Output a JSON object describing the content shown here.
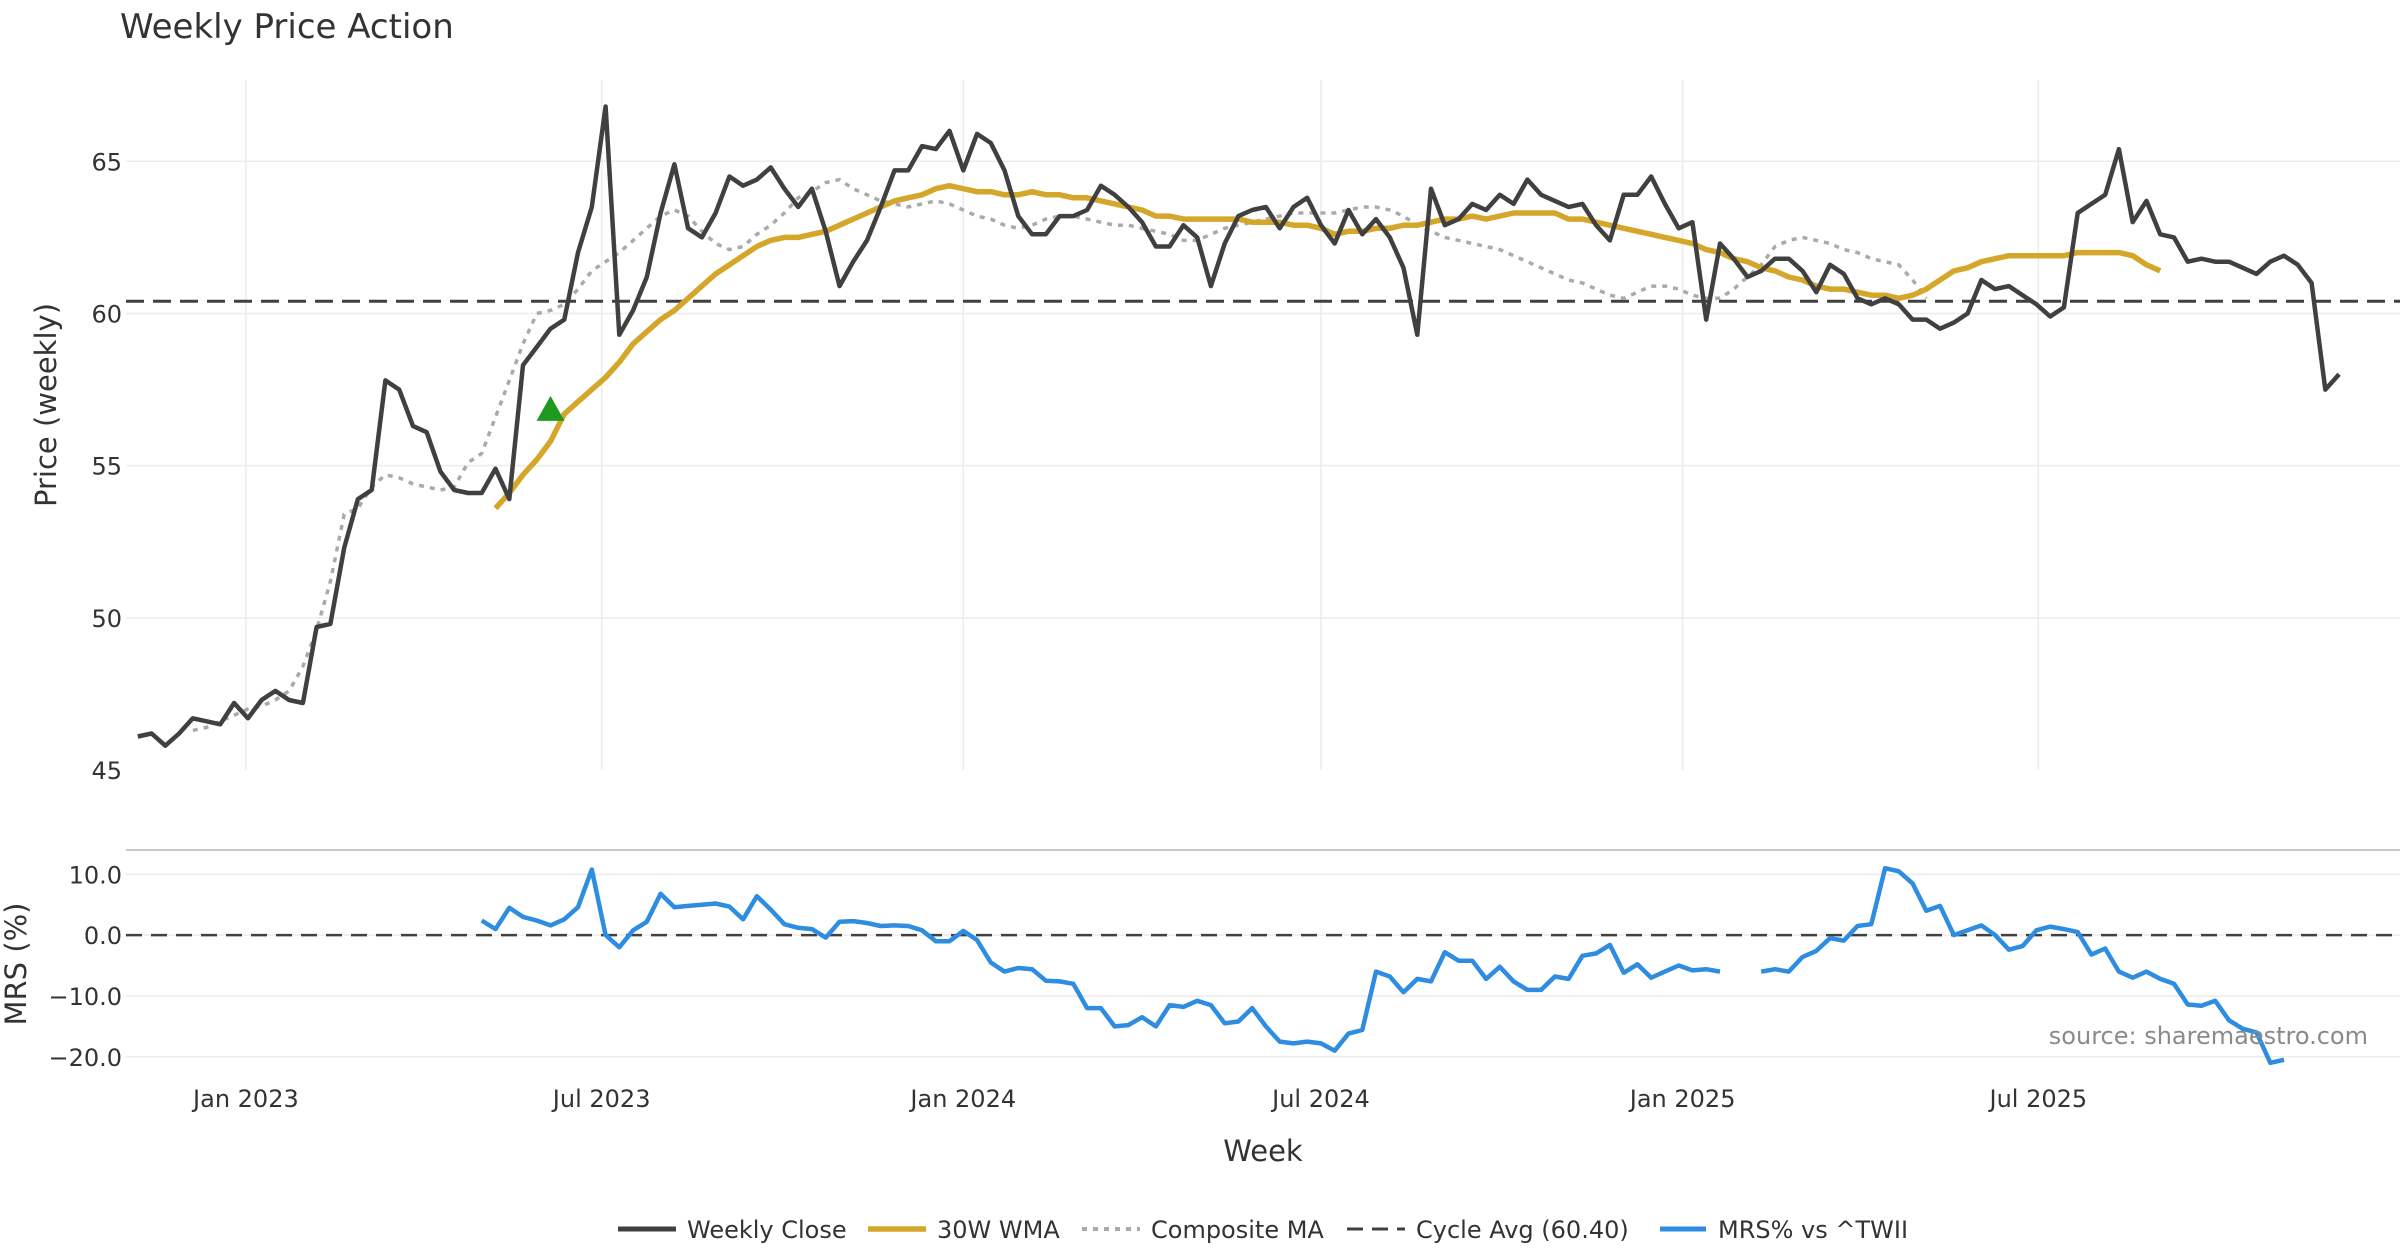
{
  "chart_data": {
    "type": "line",
    "title": "Weekly Price Action",
    "xlabel": "Week",
    "x_ticks": [
      "Jan 2023",
      "Jul 2023",
      "Jan 2024",
      "Jul 2024",
      "Jan 2025",
      "Jul 2025"
    ],
    "source": "source: sharemaestro.com",
    "legend_position": "bottom-center",
    "legend": [
      "Weekly Close",
      "30W WMA",
      "Composite MA",
      "Cycle Avg (60.40)",
      "MRS% vs ^TWII"
    ],
    "colors": {
      "close": "#404040",
      "wma": "#d4a62a",
      "composite": "#aaaaaa",
      "cycle": "#404040",
      "mrs": "#2e8de0",
      "signal": "#1e9a1e"
    },
    "price_panel": {
      "ylabel": "Price (weekly)",
      "ylim": [
        45,
        68
      ],
      "y_ticks": [
        "45",
        "50",
        "55",
        "60",
        "65"
      ],
      "grid": true,
      "cycle_avg": 60.4,
      "buy_signal": {
        "date": "2023-06-05",
        "price": 56.8
      },
      "series": [
        {
          "name": "Weekly Close",
          "start": "2022-11-07",
          "values": [
            46.1,
            46.2,
            45.8,
            46.2,
            46.7,
            46.6,
            46.5,
            47.2,
            46.7,
            47.3,
            47.6,
            47.3,
            47.2,
            49.7,
            49.8,
            52.3,
            53.9,
            54.2,
            57.8,
            57.5,
            56.3,
            56.1,
            54.8,
            54.2,
            54.1,
            54.1,
            54.9,
            53.9,
            58.3,
            58.9,
            59.5,
            59.8,
            62.0,
            63.5,
            66.8,
            59.3,
            60.1,
            61.2,
            63.3,
            64.9,
            62.8,
            62.5,
            63.3,
            64.5,
            64.2,
            64.4,
            64.8,
            64.1,
            63.5,
            64.1,
            62.7,
            60.9,
            61.7,
            62.4,
            63.5,
            64.7,
            64.7,
            65.5,
            65.4,
            66.0,
            64.7,
            65.9,
            65.6,
            64.7,
            63.2,
            62.6,
            62.6,
            63.2,
            63.2,
            63.4,
            64.2,
            63.9,
            63.5,
            63.0,
            62.2,
            62.2,
            62.9,
            62.5,
            60.9,
            62.3,
            63.2,
            63.4,
            63.5,
            62.8,
            63.5,
            63.8,
            62.9,
            62.3,
            63.4,
            62.6,
            63.1,
            62.5,
            61.5,
            59.3,
            64.1,
            62.9,
            63.1,
            63.6,
            63.4,
            63.9,
            63.6,
            64.4,
            63.9,
            63.7,
            63.5,
            63.6,
            62.9,
            62.4,
            63.9,
            63.9,
            64.5,
            63.6,
            62.8,
            63.0,
            59.8,
            62.3,
            61.8,
            61.2,
            61.4,
            61.8,
            61.8,
            61.4,
            60.7,
            61.6,
            61.3,
            60.5,
            60.3,
            60.5,
            60.3,
            59.8,
            59.8,
            59.5,
            59.7,
            60.0,
            61.1,
            60.8,
            60.9,
            60.6,
            60.3,
            59.9,
            60.2,
            63.3,
            63.6,
            63.9,
            65.4,
            63.0,
            63.7,
            62.6,
            62.5,
            61.7,
            61.8,
            61.7,
            61.7,
            61.5,
            61.3,
            61.7,
            61.9,
            61.6,
            61.0,
            57.5,
            58.0
          ]
        },
        {
          "name": "30W WMA",
          "start": "2023-05-08",
          "values": [
            53.6,
            54.1,
            54.7,
            55.2,
            55.8,
            56.7,
            57.1,
            57.5,
            57.9,
            58.4,
            59.0,
            59.4,
            59.8,
            60.1,
            60.5,
            60.9,
            61.3,
            61.6,
            61.9,
            62.2,
            62.4,
            62.5,
            62.5,
            62.6,
            62.7,
            62.9,
            63.1,
            63.3,
            63.5,
            63.7,
            63.8,
            63.9,
            64.1,
            64.2,
            64.1,
            64.0,
            64.0,
            63.9,
            63.9,
            64.0,
            63.9,
            63.9,
            63.8,
            63.8,
            63.7,
            63.6,
            63.5,
            63.4,
            63.2,
            63.2,
            63.1,
            63.1,
            63.1,
            63.1,
            63.1,
            63.0,
            63.0,
            63.0,
            62.9,
            62.9,
            62.8,
            62.6,
            62.7,
            62.7,
            62.8,
            62.8,
            62.9,
            62.9,
            63.0,
            63.1,
            63.1,
            63.2,
            63.1,
            63.2,
            63.3,
            63.3,
            63.3,
            63.3,
            63.1,
            63.1,
            63.0,
            62.9,
            62.8,
            62.7,
            62.6,
            62.5,
            62.4,
            62.3,
            62.1,
            62.0,
            61.8,
            61.7,
            61.5,
            61.4,
            61.2,
            61.1,
            60.9,
            60.8,
            60.8,
            60.7,
            60.6,
            60.6,
            60.5,
            60.6,
            60.8,
            61.1,
            61.4,
            61.5,
            61.7,
            61.8,
            61.9,
            61.9,
            61.9,
            61.9,
            61.9,
            62.0,
            62.0,
            62.0,
            62.0,
            61.9,
            61.6,
            61.4
          ]
        },
        {
          "name": "Composite MA",
          "start": "2022-12-05",
          "values": [
            46.3,
            46.4,
            46.6,
            46.8,
            47.0,
            47.1,
            47.3,
            47.6,
            48.4,
            49.6,
            51.2,
            53.4,
            53.6,
            54.3,
            54.7,
            54.6,
            54.4,
            54.3,
            54.2,
            54.3,
            55.1,
            55.4,
            56.6,
            57.8,
            59.0,
            60.0,
            60.1,
            60.3,
            60.8,
            61.4,
            61.7,
            62.0,
            62.4,
            62.8,
            63.2,
            63.4,
            63.2,
            62.7,
            62.3,
            62.1,
            62.2,
            62.6,
            62.9,
            63.3,
            63.8,
            64.0,
            64.3,
            64.4,
            64.1,
            63.9,
            63.7,
            63.6,
            63.5,
            63.6,
            63.7,
            63.6,
            63.4,
            63.2,
            63.1,
            62.9,
            62.8,
            62.9,
            63.1,
            63.2,
            63.2,
            63.1,
            63.0,
            62.9,
            62.9,
            62.8,
            62.7,
            62.6,
            62.4,
            62.4,
            62.6,
            62.8,
            62.9,
            63.0,
            63.1,
            63.2,
            63.3,
            63.3,
            63.3,
            63.3,
            63.4,
            63.5,
            63.5,
            63.4,
            63.2,
            62.9,
            62.7,
            62.5,
            62.4,
            62.3,
            62.2,
            62.1,
            61.9,
            61.7,
            61.5,
            61.3,
            61.1,
            61.0,
            60.8,
            60.6,
            60.5,
            60.7,
            60.9,
            60.9,
            60.8,
            60.6,
            60.5,
            60.5,
            60.8,
            61.2,
            61.6,
            62.2,
            62.4,
            62.5,
            62.4,
            62.3,
            62.1,
            62.0,
            61.8,
            61.7,
            61.6,
            61.1,
            60.5
          ]
        }
      ]
    },
    "mrs_panel": {
      "ylabel": "MRS (%)",
      "ylim": [
        -23,
        14
      ],
      "y_ticks": [
        "10.0",
        "0.0",
        "−10.0",
        "−20.0"
      ],
      "zero_line": 0,
      "series": [
        {
          "name": "MRS% vs ^TWII",
          "start": "2023-05-01",
          "segments": [
            [
              2.4,
              1.0,
              4.5,
              3.0,
              2.4,
              1.6,
              2.6,
              4.6,
              10.8,
              0.0,
              -2.0,
              0.8,
              2.2,
              6.8,
              4.6,
              4.8,
              5.0,
              5.2,
              4.7,
              2.6,
              6.4,
              4.2,
              1.8,
              1.2,
              1.0,
              -0.4,
              2.2,
              2.3,
              2.0,
              1.5,
              1.6,
              1.5,
              0.8,
              -1.0,
              -1.0,
              0.7,
              -0.8,
              -4.5,
              -6.0,
              -5.4,
              -5.6,
              -7.5,
              -7.6,
              -8.0,
              -12.0,
              -12.0,
              -15.0,
              -14.8,
              -13.5,
              -15.0,
              -11.5,
              -11.8,
              -10.8,
              -11.5,
              -14.5,
              -14.2,
              -12.0,
              -15.0,
              -17.5,
              -17.8,
              -17.5,
              -17.8,
              -19.0,
              -16.2,
              -15.6,
              -6.0,
              -6.8,
              -9.4,
              -7.2,
              -7.6,
              -2.8,
              -4.2,
              -4.2,
              -7.2,
              -5.2,
              -7.6,
              -9.0,
              -9.0,
              -6.8,
              -7.2,
              -3.4,
              -3.0,
              -1.6,
              -6.2,
              -4.8,
              -7.0,
              -6.0,
              -5.0,
              -5.8,
              -5.6,
              -6.0
            ],
            [
              -6.0,
              -5.6,
              -6.0,
              -3.6,
              -2.6,
              -0.5,
              -0.9,
              1.5,
              1.8,
              11.0,
              10.5,
              8.5,
              4.0,
              4.8,
              0.0,
              0.8,
              1.6,
              0.0,
              -2.4,
              -1.8,
              0.8,
              1.4,
              1.0,
              0.5,
              -3.2,
              -2.2,
              -6.0,
              -7.0,
              -6.0,
              -7.2,
              -8.0,
              -11.4,
              -11.6,
              -10.8,
              -14.0,
              -15.4,
              -16.0,
              -21.0,
              -20.5
            ]
          ]
        }
      ]
    }
  }
}
